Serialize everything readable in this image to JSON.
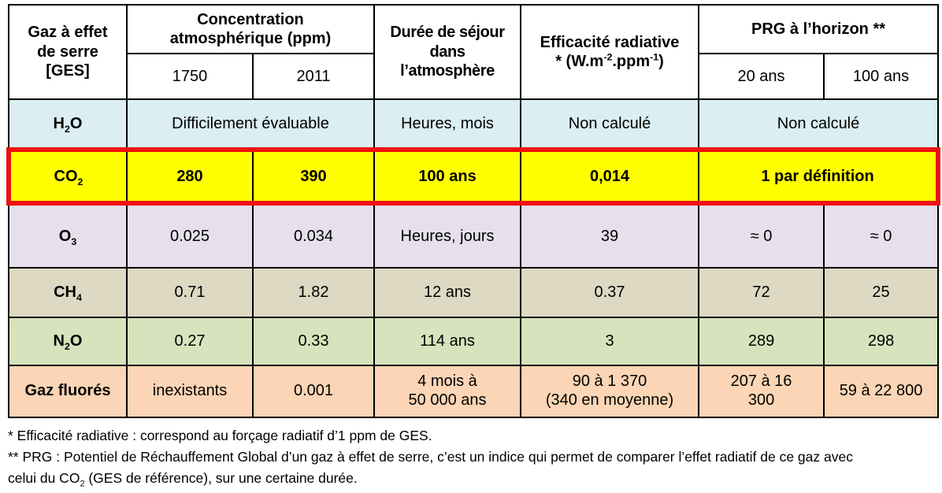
{
  "colors": {
    "grid_border": "#000000",
    "highlight_border": "#ee1111",
    "header_bg": "#ffffff"
  },
  "header": {
    "gas": "Gaz à effet\nde serre\n[GES]",
    "concentration": "Concentration\natmosphérique (ppm)",
    "year_1750": "1750",
    "year_2011": "2011",
    "duration": "Durée de séjour\ndans\nl’atmosphère",
    "efficiency": "Efficacité radiative\n* (W.m^-2^.ppm^-1^)",
    "prg": "PRG à l’horizon **",
    "horizon_20": "20 ans",
    "horizon_100": "100 ans"
  },
  "rows": [
    {
      "id": "h2o",
      "bg": "#daeef3",
      "gas": "H~2~O",
      "cells": [
        "Difficilement évaluable",
        "Heures, mois",
        "Non calculé",
        "Non calculé"
      ]
    },
    {
      "id": "co2",
      "bg": "#ffff00",
      "gas": "CO~2~",
      "cells": [
        "280",
        "390",
        "100 ans",
        "0,014",
        "1 par définition"
      ]
    },
    {
      "id": "o3",
      "bg": "#e5e0ec",
      "gas": "O~3~",
      "cells": [
        "0.025",
        "0.034",
        "Heures, jours",
        "39",
        "≈ 0",
        "≈ 0"
      ]
    },
    {
      "id": "ch4",
      "bg": "#ddd9c3",
      "gas": "CH~4~",
      "cells": [
        "0.71",
        "1.82",
        "12 ans",
        "0.37",
        "72",
        "25"
      ]
    },
    {
      "id": "n2o",
      "bg": "#d6e3bc",
      "gas": "N~2~O",
      "cells": [
        "0.27",
        "0.33",
        "114 ans",
        "3",
        "289",
        "298"
      ]
    },
    {
      "id": "fluores",
      "bg": "#fbd5b5",
      "gas": "Gaz fluorés",
      "cells": [
        "inexistants",
        "0.001",
        "4 mois à\n50 000 ans",
        "90 à 1 370\n(340 en moyenne)",
        "207 à 16\n300",
        "59 à 22 800"
      ]
    }
  ],
  "footnotes": [
    "* Efficacité radiative : correspond au forçage radiatif d’1 ppm de GES.",
    "** PRG : Potentiel de Réchauffement Global d’un gaz à effet de serre, c’est un indice qui permet de comparer l’effet radiatif de ce gaz avec\ncelui du CO~2~ (GES de référence),  sur une certaine durée."
  ]
}
